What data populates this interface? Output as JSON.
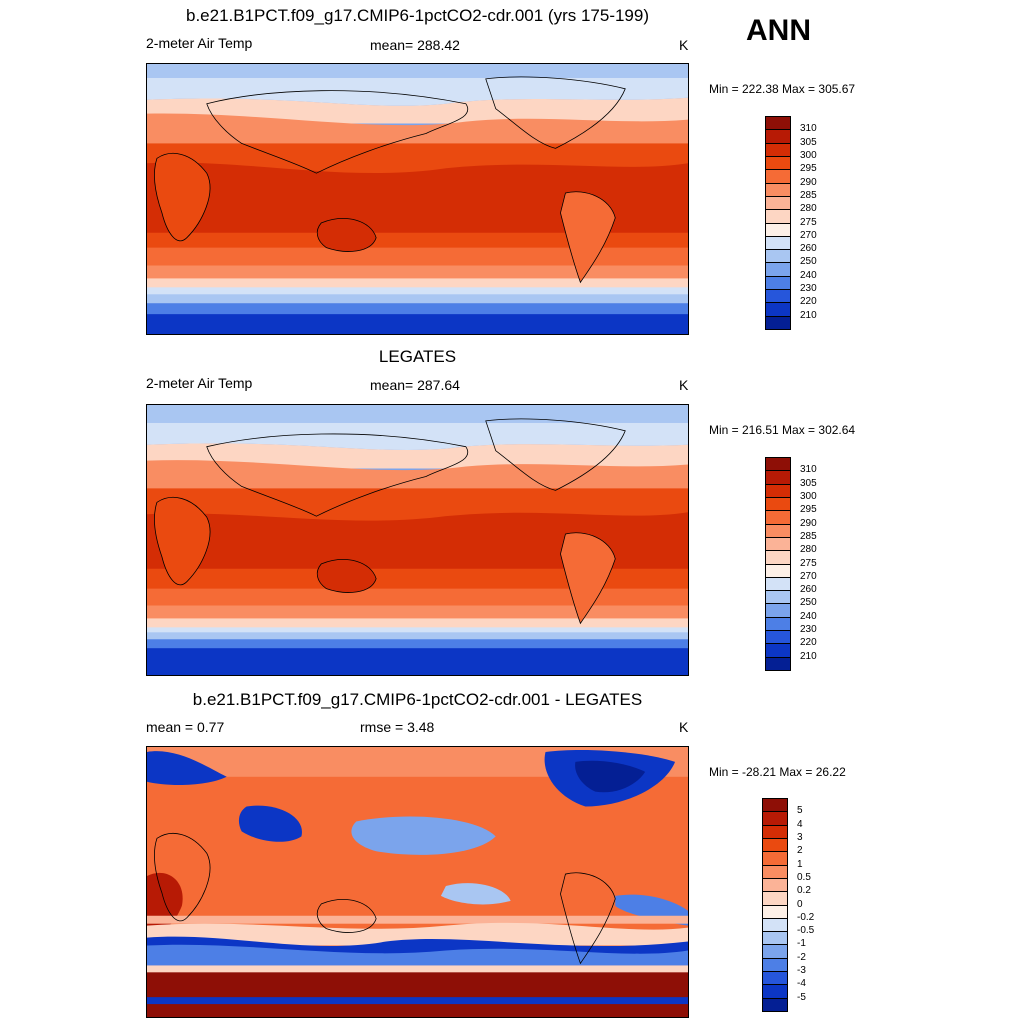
{
  "header": {
    "season": "ANN"
  },
  "panels": [
    {
      "title": "b.e21.B1PCT.f09_g17.CMIP6-1pctCO2-cdr.001 (yrs 175-199)",
      "left_label": "2-meter Air Temp",
      "center_label": "mean= 288.42",
      "units": "K",
      "minmax": "Min = 222.38 Max = 305.67",
      "map_icon": "global-temperature-map"
    },
    {
      "title": "LEGATES",
      "left_label": "2-meter Air Temp",
      "center_label": "mean= 287.64",
      "units": "K",
      "minmax": "Min = 216.51 Max = 302.64",
      "map_icon": "global-temperature-map"
    },
    {
      "title": "b.e21.B1PCT.f09_g17.CMIP6-1pctCO2-cdr.001 - LEGATES",
      "left_label": "mean =   0.77",
      "center_label": "rmse =   3.48",
      "units": "K",
      "minmax": "Min = -28.21 Max =  26.22",
      "map_icon": "global-difference-map"
    }
  ],
  "colorbars": {
    "absolute": {
      "labels": [
        "310",
        "305",
        "300",
        "295",
        "290",
        "285",
        "280",
        "275",
        "270",
        "260",
        "250",
        "240",
        "230",
        "220",
        "210"
      ],
      "colors": [
        "#8e0f06",
        "#b71a05",
        "#d42d05",
        "#ea4a10",
        "#f56b36",
        "#f98d62",
        "#fbb397",
        "#fdd6c3",
        "#fdf0e7",
        "#d3e2f7",
        "#a9c6f2",
        "#7ba4ec",
        "#4d7fe6",
        "#2656db",
        "#0c36c5",
        "#041f94"
      ]
    },
    "difference": {
      "labels": [
        "5",
        "4",
        "3",
        "2",
        "1",
        "0.5",
        "0.2",
        "0",
        "-0.2",
        "-0.5",
        "-1",
        "-2",
        "-3",
        "-4",
        "-5"
      ],
      "colors": [
        "#8e0f06",
        "#b71a05",
        "#d42d05",
        "#ea4a10",
        "#f56b36",
        "#f98d62",
        "#fbb397",
        "#fdd6c3",
        "#fdf0e7",
        "#d3e2f7",
        "#a9c6f2",
        "#7ba4ec",
        "#4d7fe6",
        "#2656db",
        "#0c36c5",
        "#041f94"
      ]
    }
  }
}
